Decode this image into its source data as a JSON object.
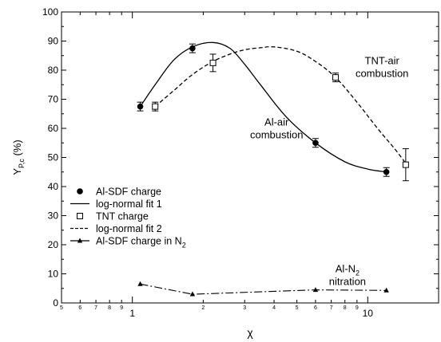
{
  "chart_data": {
    "type": "scatter",
    "xlabel": "χ",
    "ylabel": "Y",
    "ylabel_sub": "P,c",
    "ylabel_unit": " (%)",
    "x_scale": "log",
    "xlim": [
      0.5,
      20
    ],
    "ylim": [
      0,
      100
    ],
    "y_ticks": [
      0,
      10,
      20,
      30,
      40,
      50,
      60,
      70,
      80,
      90,
      100
    ],
    "x_major_ticks": [
      {
        "value": 1,
        "label": "1"
      },
      {
        "value": 10,
        "label": "10"
      }
    ],
    "x_minor_ticks": [
      {
        "value": 0.5,
        "label": "5"
      },
      {
        "value": 0.6,
        "label": "6"
      },
      {
        "value": 0.7,
        "label": "7"
      },
      {
        "value": 0.8,
        "label": "8"
      },
      {
        "value": 0.9,
        "label": "9"
      },
      {
        "value": 2,
        "label": "2"
      },
      {
        "value": 3,
        "label": "3"
      },
      {
        "value": 4,
        "label": "4"
      },
      {
        "value": 5,
        "label": "5"
      },
      {
        "value": 6,
        "label": "6"
      },
      {
        "value": 7,
        "label": "7"
      },
      {
        "value": 8,
        "label": "8"
      },
      {
        "value": 9,
        "label": "9"
      },
      {
        "value": 20,
        "label": ""
      }
    ],
    "series": [
      {
        "name": "Al-SDF charge",
        "kind": "points",
        "marker": "filled-circle",
        "points": [
          {
            "x": 1.08,
            "y": 67.5,
            "err": 1.5
          },
          {
            "x": 1.8,
            "y": 87.5,
            "err": 1.5
          },
          {
            "x": 6.0,
            "y": 55.0,
            "err": 1.5
          },
          {
            "x": 12.0,
            "y": 45.0,
            "err": 1.5
          }
        ]
      },
      {
        "name": "log-normal fit 1",
        "kind": "line",
        "dash": "solid",
        "points": [
          {
            "x": 1.08,
            "y": 67.5
          },
          {
            "x": 1.25,
            "y": 75
          },
          {
            "x": 1.5,
            "y": 83.5
          },
          {
            "x": 1.8,
            "y": 88
          },
          {
            "x": 2.2,
            "y": 89.5
          },
          {
            "x": 2.6,
            "y": 87.5
          },
          {
            "x": 3.0,
            "y": 82
          },
          {
            "x": 3.5,
            "y": 75
          },
          {
            "x": 4.5,
            "y": 64
          },
          {
            "x": 6.0,
            "y": 55
          },
          {
            "x": 8.0,
            "y": 48.5
          },
          {
            "x": 10.0,
            "y": 46
          },
          {
            "x": 12.0,
            "y": 45
          }
        ]
      },
      {
        "name": "TNT charge",
        "kind": "points",
        "marker": "open-square",
        "points": [
          {
            "x": 1.25,
            "y": 67.5,
            "err": 1.5
          },
          {
            "x": 2.2,
            "y": 82.5,
            "err": 3
          },
          {
            "x": 7.3,
            "y": 77.5,
            "err": 1.5
          },
          {
            "x": 14.5,
            "y": 47.5,
            "err": 5.5
          }
        ]
      },
      {
        "name": "log-normal fit 2",
        "kind": "line",
        "dash": "dashed",
        "points": [
          {
            "x": 1.25,
            "y": 67.5
          },
          {
            "x": 1.5,
            "y": 73
          },
          {
            "x": 1.8,
            "y": 78.5
          },
          {
            "x": 2.2,
            "y": 83
          },
          {
            "x": 2.6,
            "y": 85.5
          },
          {
            "x": 3.0,
            "y": 87
          },
          {
            "x": 3.5,
            "y": 87.7
          },
          {
            "x": 4.0,
            "y": 88
          },
          {
            "x": 5.0,
            "y": 86.5
          },
          {
            "x": 6.0,
            "y": 83
          },
          {
            "x": 7.3,
            "y": 77.5
          },
          {
            "x": 9.0,
            "y": 69
          },
          {
            "x": 11.0,
            "y": 60
          },
          {
            "x": 13.0,
            "y": 53
          },
          {
            "x": 14.5,
            "y": 48
          }
        ]
      },
      {
        "name": "Al-SDF charge in N",
        "name_sub": "2",
        "kind": "points-line",
        "marker": "filled-triangle",
        "dash": "dash-dot",
        "points": [
          {
            "x": 1.08,
            "y": 6.5
          },
          {
            "x": 1.8,
            "y": 3.0
          },
          {
            "x": 6.0,
            "y": 4.5
          },
          {
            "x": 12.0,
            "y": 4.3
          }
        ]
      }
    ],
    "annotations": [
      {
        "id": "tnt",
        "lines": [
          "TNT-air",
          "combustion"
        ],
        "x": 11.5,
        "y": 82,
        "anchor": "middle"
      },
      {
        "id": "al",
        "lines": [
          "Al-air",
          "combustion"
        ],
        "x": 4.1,
        "y": 61,
        "anchor": "middle"
      },
      {
        "id": "n2",
        "lines": [
          "Al-N",
          "nitration"
        ],
        "line1_sub": "2",
        "x": 8.2,
        "y": 10.5,
        "anchor": "middle"
      }
    ],
    "legend_placement": "middle-left"
  }
}
